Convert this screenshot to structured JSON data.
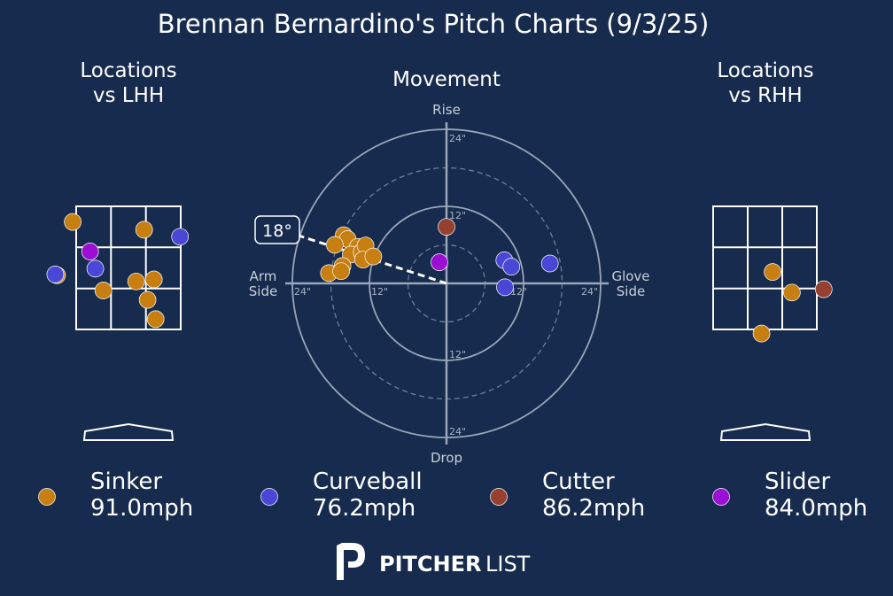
{
  "title": "Brennan Bernardino's Pitch Charts (9/3/25)",
  "panels": {
    "lhh_title_line1": "Locations",
    "lhh_title_line2": "vs LHH",
    "movement_title": "Movement",
    "rhh_title_line1": "Locations",
    "rhh_title_line2": "vs RHH"
  },
  "movement_axes": {
    "top": "Rise",
    "bottom": "Drop",
    "left_line1": "Arm",
    "left_line2": "Side",
    "right_line1": "Glove",
    "right_line2": "Side",
    "ring_inner": "12\"",
    "ring_outer": "24\"",
    "arm_angle_label": "18°"
  },
  "colors": {
    "background": "#162b4d",
    "Sinker": "#c77f12",
    "Curveball": "#4a47d6",
    "Cutter": "#96412f",
    "Slider": "#9a0fd1"
  },
  "legend": [
    {
      "pitch": "Sinker",
      "velo": "91.0mph"
    },
    {
      "pitch": "Curveball",
      "velo": "76.2mph"
    },
    {
      "pitch": "Cutter",
      "velo": "86.2mph"
    },
    {
      "pitch": "Slider",
      "velo": "84.0mph"
    }
  ],
  "brand": {
    "bold": "PITCHER",
    "light": "LIST"
  },
  "chart_data": [
    {
      "type": "scatter",
      "title": "Locations vs LHH",
      "units": "strike-zone grid cells (x: 0-3 left to right, y: 0-3 top to bottom)",
      "series": [
        {
          "name": "Sinker",
          "points": [
            [
              -0.1,
              0.38
            ],
            [
              1.95,
              0.57
            ],
            [
              -0.55,
              1.68
            ],
            [
              0.78,
              2.05
            ],
            [
              1.72,
              1.83
            ],
            [
              2.23,
              1.78
            ],
            [
              2.05,
              2.28
            ],
            [
              2.28,
              2.75
            ]
          ]
        },
        {
          "name": "Curveball",
          "points": [
            [
              2.98,
              0.74
            ],
            [
              0.55,
              1.52
            ],
            [
              -0.6,
              1.66
            ]
          ]
        },
        {
          "name": "Slider",
          "points": [
            [
              0.4,
              1.1
            ]
          ]
        }
      ]
    },
    {
      "type": "scatter",
      "title": "Movement",
      "units": "inches (x: negative = arm side, positive = glove side; y: positive = rise)",
      "arm_angle_deg": 18,
      "rings": [
        6,
        12,
        18,
        24
      ],
      "series": [
        {
          "name": "Sinker",
          "points": [
            [
              -18.3,
              1.6
            ],
            [
              -16.0,
              7.5
            ],
            [
              -15.4,
              6.9
            ],
            [
              -13.8,
              5.7
            ],
            [
              -14.9,
              4.5
            ],
            [
              -13.2,
              4.9
            ],
            [
              -12.6,
              5.9
            ],
            [
              -17.4,
              6.0
            ],
            [
              -13.0,
              3.7
            ],
            [
              -16.2,
              2.7
            ],
            [
              -16.4,
              1.9
            ],
            [
              -11.4,
              4.2
            ]
          ]
        },
        {
          "name": "Curveball",
          "points": [
            [
              9.0,
              3.6
            ],
            [
              10.1,
              2.6
            ],
            [
              16.1,
              3.1
            ],
            [
              9.1,
              -0.6
            ]
          ]
        },
        {
          "name": "Cutter",
          "points": [
            [
              0.0,
              8.8
            ]
          ]
        },
        {
          "name": "Slider",
          "points": [
            [
              -1.1,
              3.3
            ]
          ]
        }
      ]
    },
    {
      "type": "scatter",
      "title": "Locations vs RHH",
      "units": "strike-zone grid cells (x: 0-3 left to right, y: 0-3 top to bottom)",
      "series": [
        {
          "name": "Sinker",
          "points": [
            [
              1.72,
              1.6
            ],
            [
              2.28,
              2.1
            ],
            [
              1.4,
              3.1
            ]
          ]
        },
        {
          "name": "Cutter",
          "points": [
            [
              3.2,
              2.02
            ]
          ]
        }
      ]
    }
  ]
}
